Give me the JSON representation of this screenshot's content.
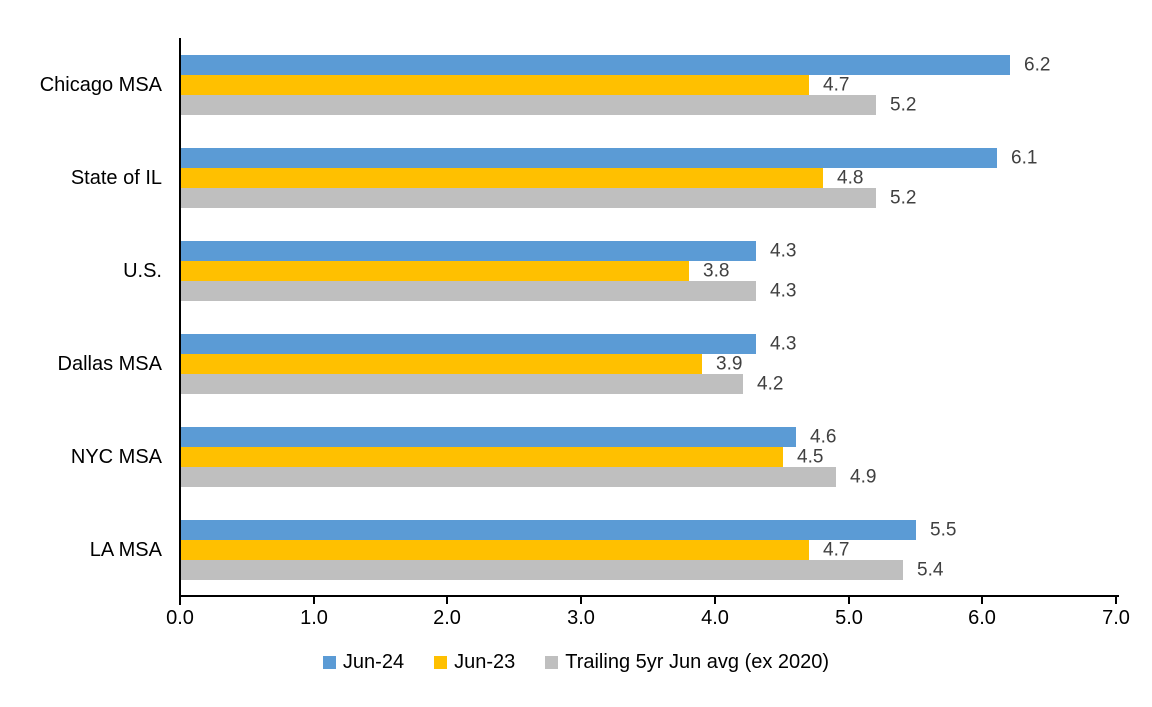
{
  "chart_data": {
    "type": "bar",
    "orientation": "horizontal",
    "title": "",
    "categories": [
      "Chicago MSA",
      "State of IL",
      "U.S.",
      "Dallas MSA",
      "NYC MSA",
      "LA MSA"
    ],
    "series": [
      {
        "name": "Jun-24",
        "color": "#5B9BD5",
        "values": [
          6.2,
          6.1,
          4.3,
          4.3,
          4.6,
          5.5
        ]
      },
      {
        "name": "Jun-23",
        "color": "#FFC000",
        "values": [
          4.7,
          4.8,
          3.8,
          3.9,
          4.5,
          4.7
        ]
      },
      {
        "name": "Trailing 5yr Jun avg (ex 2020)",
        "color": "#BFBFBF",
        "values": [
          5.2,
          5.2,
          4.3,
          4.2,
          4.9,
          5.4
        ]
      }
    ],
    "xlim": [
      0,
      7
    ],
    "x_ticks": [
      "0.0",
      "1.0",
      "2.0",
      "3.0",
      "4.0",
      "5.0",
      "6.0",
      "7.0"
    ],
    "data_labels_shown": true,
    "data_label_decimals": 1,
    "grid": "off",
    "legend_position": "bottom"
  },
  "colors": {
    "background": "#FFFFFF",
    "axis": "#000000",
    "data_label": "#404040",
    "category_label": "#000000",
    "tick_label": "#000000"
  }
}
